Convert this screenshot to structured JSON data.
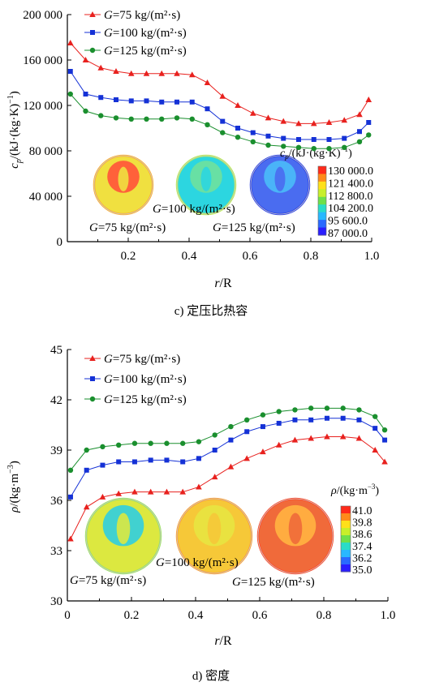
{
  "chart_data": [
    {
      "type": "line",
      "caption": "c) 定压比热容",
      "xlabel_var": "r",
      "xlabel_unit": "/R",
      "ylabel_var": "c",
      "ylabel_sub": "p",
      "ylabel_unit": "/(kJ·(kg·K)",
      "ylabel_exp": "−1",
      "ylabel_close": ")",
      "xlim": [
        0,
        1.0
      ],
      "ylim": [
        0,
        200000
      ],
      "x_ticks": [
        "0.2",
        "0.4",
        "0.6",
        "0.8",
        "1.0"
      ],
      "y_ticks": [
        "0",
        "40 000",
        "80 000",
        "120 000",
        "160 000",
        "200 000"
      ],
      "grid": false,
      "legend_position": "top-left",
      "series": [
        {
          "name": "G=75 kg/(m²·s)",
          "color": "#e8211e",
          "marker": "triangle",
          "x": [
            0.01,
            0.06,
            0.11,
            0.16,
            0.21,
            0.26,
            0.31,
            0.36,
            0.41,
            0.46,
            0.51,
            0.56,
            0.61,
            0.66,
            0.71,
            0.76,
            0.81,
            0.86,
            0.91,
            0.96,
            0.99
          ],
          "y": [
            175000,
            160000,
            153000,
            150000,
            148000,
            148000,
            148000,
            148000,
            147000,
            140000,
            128000,
            120000,
            113000,
            109000,
            106000,
            104000,
            104000,
            105000,
            107000,
            112000,
            125000
          ]
        },
        {
          "name": "G=100 kg/(m²·s)",
          "color": "#1431d6",
          "marker": "square",
          "x": [
            0.01,
            0.06,
            0.11,
            0.16,
            0.21,
            0.26,
            0.31,
            0.36,
            0.41,
            0.46,
            0.51,
            0.56,
            0.61,
            0.66,
            0.71,
            0.76,
            0.81,
            0.86,
            0.91,
            0.96,
            0.99
          ],
          "y": [
            150000,
            130000,
            127000,
            125000,
            124000,
            124000,
            123000,
            123000,
            123000,
            117000,
            106000,
            100000,
            96000,
            93000,
            91000,
            90000,
            90000,
            90000,
            91000,
            97000,
            105000
          ]
        },
        {
          "name": "G=125 kg/(m²·s)",
          "color": "#1a8f2e",
          "marker": "circle",
          "x": [
            0.01,
            0.06,
            0.11,
            0.16,
            0.21,
            0.26,
            0.31,
            0.36,
            0.41,
            0.46,
            0.51,
            0.56,
            0.61,
            0.66,
            0.71,
            0.76,
            0.81,
            0.86,
            0.91,
            0.96,
            0.99
          ],
          "y": [
            130000,
            115000,
            111000,
            109000,
            108000,
            108000,
            108000,
            109000,
            108000,
            103000,
            96000,
            92000,
            88000,
            85000,
            84000,
            83000,
            82000,
            82000,
            83000,
            88000,
            94000
          ]
        }
      ],
      "colorbar": {
        "title_var": "c",
        "title_sub": "p",
        "title_unit": "/(kJ·(kg·K)",
        "title_exp": "−1",
        "title_close": ")",
        "labels": [
          "130 000.0",
          "121 400.0",
          "112 800.0",
          "104 200.0",
          "95 600.0",
          "87 000.0"
        ],
        "colors": [
          "#ff2a1a",
          "#ff8a1a",
          "#ffe01a",
          "#c8ef2a",
          "#6ee04a",
          "#2adcc8",
          "#29b8ff",
          "#2a6aff",
          "#2a1eff"
        ]
      },
      "insets": [
        {
          "label": "G=75 kg/(m²·s)",
          "body_color": "#f0e040",
          "core_color": "#ff5a3a",
          "edge_color": "#ffb030"
        },
        {
          "label": "G=100 kg/(m²·s)",
          "body_color": "#2cd6e0",
          "core_color": "#6ce0a0",
          "edge_color": "#b8ef50"
        },
        {
          "label": "G=125 kg/(m²·s)",
          "body_color": "#4a6cf0",
          "core_color": "#4ab8f8",
          "edge_color": "#2a40e8"
        }
      ]
    },
    {
      "type": "line",
      "caption": "d) 密度",
      "xlabel_var": "r",
      "xlabel_unit": "/R",
      "ylabel_var": "ρ",
      "ylabel_unit": "/(kg·m",
      "ylabel_exp": "−3",
      "ylabel_close": ")",
      "xlim": [
        0,
        1.0
      ],
      "ylim": [
        30,
        45
      ],
      "x_ticks": [
        "0",
        "0.2",
        "0.4",
        "0.6",
        "0.8",
        "1.0"
      ],
      "y_ticks": [
        "30",
        "33",
        "36",
        "39",
        "42",
        "45"
      ],
      "grid": false,
      "legend_position": "top-left",
      "series": [
        {
          "name": "G=75 kg/(m²·s)",
          "color": "#e8211e",
          "marker": "triangle",
          "x": [
            0.01,
            0.06,
            0.11,
            0.16,
            0.21,
            0.26,
            0.31,
            0.36,
            0.41,
            0.46,
            0.51,
            0.56,
            0.61,
            0.66,
            0.71,
            0.76,
            0.81,
            0.86,
            0.91,
            0.96,
            0.99
          ],
          "y": [
            33.7,
            35.6,
            36.2,
            36.4,
            36.5,
            36.5,
            36.5,
            36.5,
            36.8,
            37.4,
            38.0,
            38.5,
            38.9,
            39.3,
            39.6,
            39.7,
            39.8,
            39.8,
            39.7,
            39.0,
            38.3
          ]
        },
        {
          "name": "G=100 kg/(m²·s)",
          "color": "#1431d6",
          "marker": "square",
          "x": [
            0.01,
            0.06,
            0.11,
            0.16,
            0.21,
            0.26,
            0.31,
            0.36,
            0.41,
            0.46,
            0.51,
            0.56,
            0.61,
            0.66,
            0.71,
            0.76,
            0.81,
            0.86,
            0.91,
            0.96,
            0.99
          ],
          "y": [
            36.2,
            37.8,
            38.1,
            38.3,
            38.3,
            38.4,
            38.4,
            38.3,
            38.5,
            39.0,
            39.6,
            40.1,
            40.4,
            40.6,
            40.8,
            40.8,
            40.9,
            40.9,
            40.8,
            40.3,
            39.6
          ]
        },
        {
          "name": "G=125 kg/(m²·s)",
          "color": "#1a8f2e",
          "marker": "circle",
          "x": [
            0.01,
            0.06,
            0.11,
            0.16,
            0.21,
            0.26,
            0.31,
            0.36,
            0.41,
            0.46,
            0.51,
            0.56,
            0.61,
            0.66,
            0.71,
            0.76,
            0.81,
            0.86,
            0.91,
            0.96,
            0.99
          ],
          "y": [
            37.8,
            39.0,
            39.2,
            39.3,
            39.4,
            39.4,
            39.4,
            39.4,
            39.5,
            39.9,
            40.4,
            40.8,
            41.1,
            41.3,
            41.4,
            41.5,
            41.5,
            41.5,
            41.4,
            41.0,
            40.2
          ]
        }
      ],
      "colorbar": {
        "title_var": "ρ",
        "title_unit": "/(kg·m",
        "title_exp": "−3",
        "title_close": ")",
        "labels": [
          "41.0",
          "39.8",
          "38.6",
          "37.4",
          "36.2",
          "35.0"
        ],
        "colors": [
          "#ff2a1a",
          "#ff8a1a",
          "#ffe01a",
          "#c8ef2a",
          "#6ee04a",
          "#2adcc8",
          "#29b8ff",
          "#2a6aff",
          "#2a1eff"
        ]
      },
      "insets": [
        {
          "label": "G=75 kg/(m²·s)",
          "body_color": "#dce840",
          "core_color": "#38d0d8",
          "edge_color": "#9ce460"
        },
        {
          "label": "G=100 kg/(m²·s)",
          "body_color": "#f6c838",
          "core_color": "#e8e440",
          "edge_color": "#ffa030"
        },
        {
          "label": "G=125 kg/(m²·s)",
          "body_color": "#f06a3a",
          "core_color": "#ffb040",
          "edge_color": "#ff4a2a"
        }
      ]
    }
  ]
}
